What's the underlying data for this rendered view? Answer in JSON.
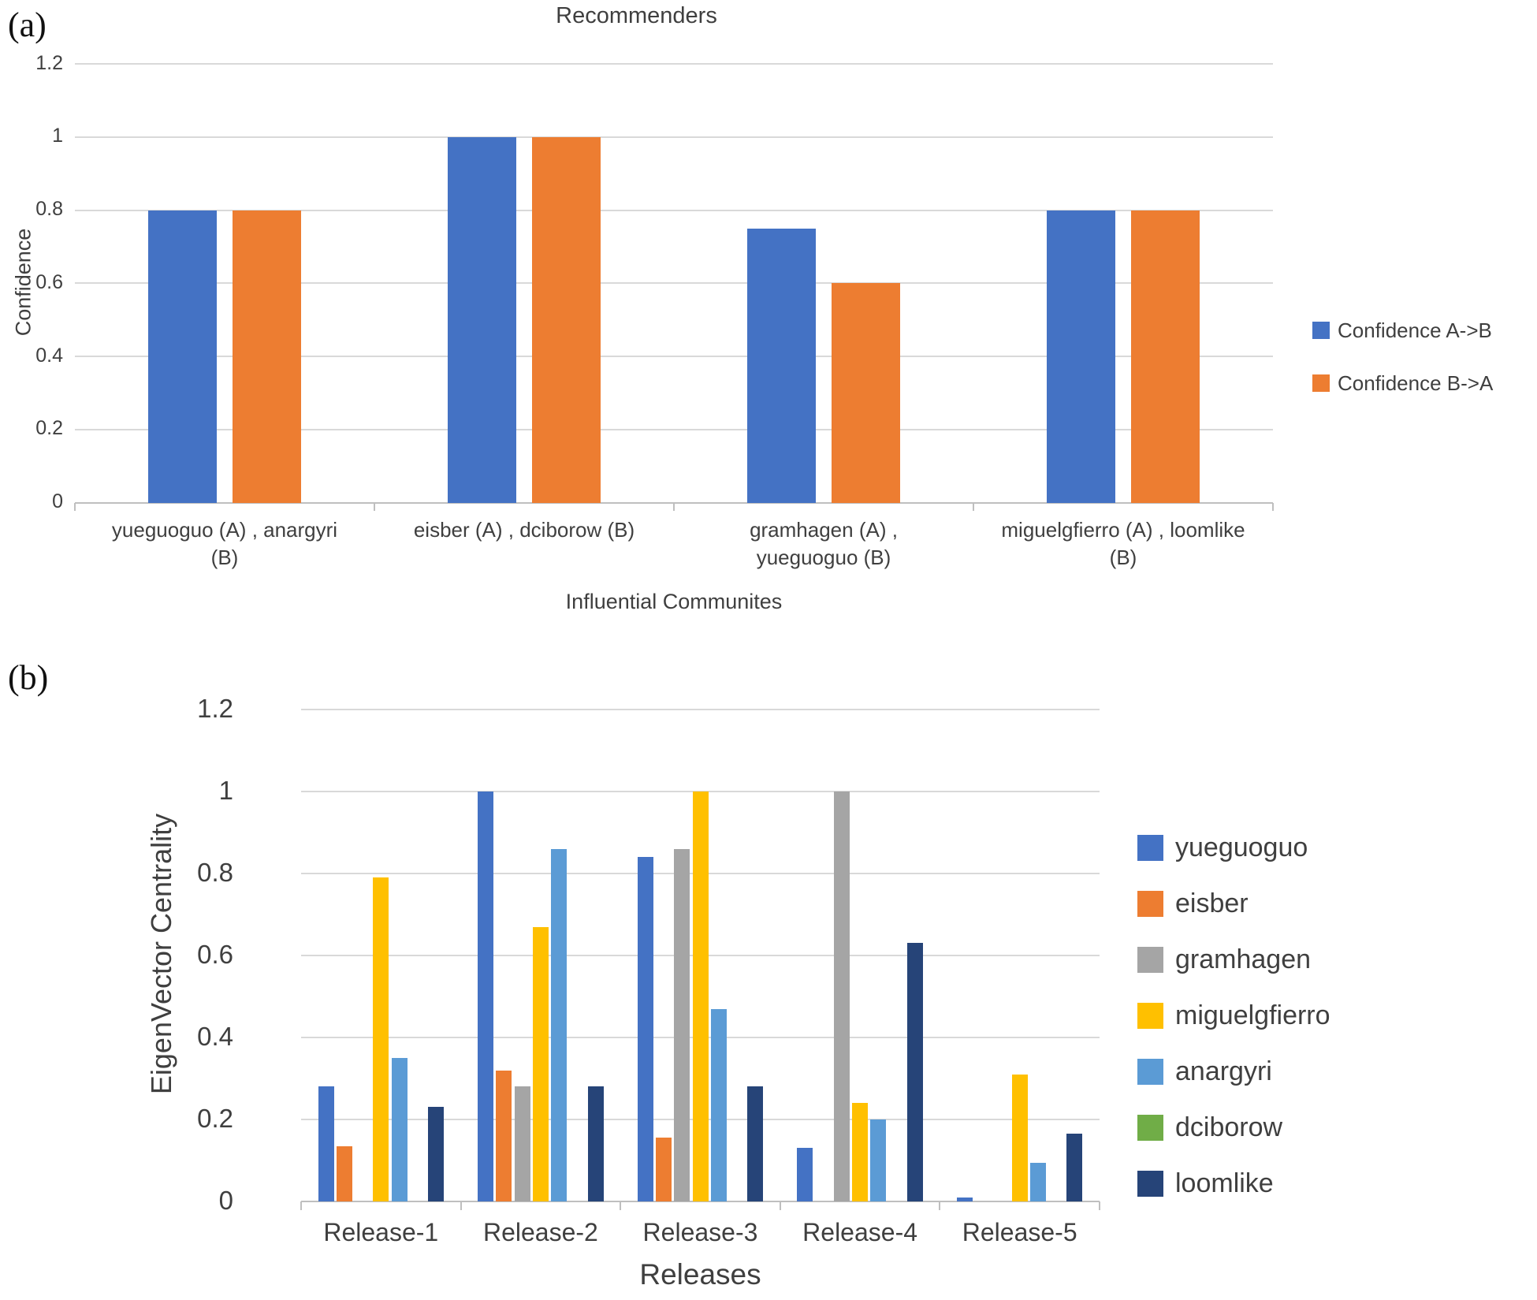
{
  "figure": {
    "panel_a_label": "(a)",
    "panel_b_label": "(b)"
  },
  "chart_data": [
    {
      "id": "recommenders",
      "type": "bar",
      "title": "Recommenders",
      "xlabel": "Influential Communites",
      "ylabel": "Confidence",
      "ylim": [
        0,
        1.2
      ],
      "yticks": [
        1.2,
        1,
        0.8,
        0.6,
        0.4,
        0.2,
        0
      ],
      "ytick_labels": [
        "1.2",
        "1",
        "0.8",
        "0.6",
        "0.4",
        "0.2",
        "0"
      ],
      "grid": true,
      "legend_position": "right",
      "categories": [
        "yueguoguo (A) , anargyri\n(B)",
        "eisber (A) , dciborow (B)",
        "gramhagen (A) ,\nyueguoguo (B)",
        "miguelgfierro (A) , loomlike\n(B)"
      ],
      "series": [
        {
          "name": "Confidence A->B",
          "color": "#4472C4",
          "values": [
            0.8,
            1,
            0.75,
            0.8
          ]
        },
        {
          "name": "Confidence B->A",
          "color": "#ED7D31",
          "values": [
            0.8,
            1,
            0.6,
            0.8
          ]
        }
      ]
    },
    {
      "id": "eigenvector-centrality",
      "type": "bar",
      "title": "",
      "xlabel": "Releases",
      "ylabel": "EigenVector Centrality",
      "ylim": [
        0,
        1.2
      ],
      "yticks": [
        1.2,
        1,
        0.8,
        0.6,
        0.4,
        0.2,
        0
      ],
      "ytick_labels": [
        "1.2",
        "1",
        "0.8",
        "0.6",
        "0.4",
        "0.2",
        "0"
      ],
      "grid": true,
      "legend_position": "right",
      "categories": [
        "Release-1",
        "Release-2",
        "Release-3",
        "Release-4",
        "Release-5"
      ],
      "series": [
        {
          "name": "yueguoguo",
          "color": "#4472C4",
          "values": [
            0.28,
            1,
            0.84,
            0.13,
            0.01
          ]
        },
        {
          "name": "eisber",
          "color": "#ED7D31",
          "values": [
            0.135,
            0.32,
            0.155,
            0,
            0
          ]
        },
        {
          "name": "gramhagen",
          "color": "#A5A5A5",
          "values": [
            0,
            0.28,
            0.86,
            1,
            0
          ]
        },
        {
          "name": "miguelgfierro",
          "color": "#FFC000",
          "values": [
            0.79,
            0.67,
            1,
            0.24,
            0.31
          ]
        },
        {
          "name": "anargyri",
          "color": "#5B9BD5",
          "values": [
            0.35,
            0.86,
            0.47,
            0.2,
            0.095
          ]
        },
        {
          "name": "dciborow",
          "color": "#70AD47",
          "values": [
            0,
            0,
            0,
            0,
            0
          ]
        },
        {
          "name": "loomlike",
          "color": "#264478",
          "values": [
            0.23,
            0.28,
            0.28,
            0.63,
            0.165
          ]
        }
      ]
    }
  ]
}
